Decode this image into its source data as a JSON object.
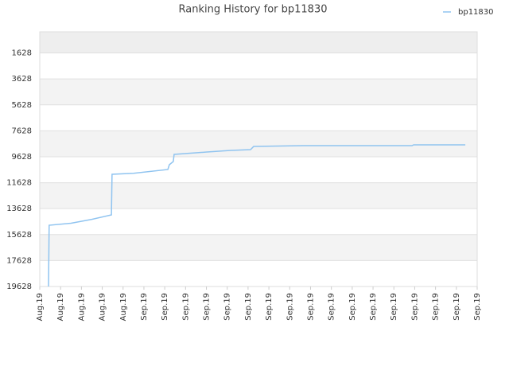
{
  "chart_data": {
    "type": "line",
    "title": "Ranking History for bp11830",
    "ylim": [
      19628,
      0
    ],
    "yticks": [
      1628,
      3628,
      5628,
      7628,
      9628,
      11628,
      13628,
      15628,
      17628,
      19628
    ],
    "xlim": [
      0,
      21
    ],
    "xticks": [
      {
        "value": 0,
        "label": "Aug.19"
      },
      {
        "value": 1,
        "label": "Aug.19"
      },
      {
        "value": 2,
        "label": "Aug.19"
      },
      {
        "value": 3,
        "label": "Aug.19"
      },
      {
        "value": 4,
        "label": "Aug.19"
      },
      {
        "value": 5,
        "label": "Sep.19"
      },
      {
        "value": 6,
        "label": "Sep.19"
      },
      {
        "value": 7,
        "label": "Sep.19"
      },
      {
        "value": 8,
        "label": "Sep.19"
      },
      {
        "value": 9,
        "label": "Sep.19"
      },
      {
        "value": 10,
        "label": "Sep.19"
      },
      {
        "value": 11,
        "label": "Sep.19"
      },
      {
        "value": 12,
        "label": "Sep.19"
      },
      {
        "value": 13,
        "label": "Sep.19"
      },
      {
        "value": 14,
        "label": "Sep.19"
      },
      {
        "value": 15,
        "label": "Sep.19"
      },
      {
        "value": 16,
        "label": "Sep.19"
      },
      {
        "value": 17,
        "label": "Sep.19"
      },
      {
        "value": 18,
        "label": "Sep.19"
      },
      {
        "value": 19,
        "label": "Sep.19"
      },
      {
        "value": 20,
        "label": "Sep.19"
      },
      {
        "value": 21,
        "label": "Sep.19"
      }
    ],
    "grid": true,
    "legend": "top-right",
    "series": [
      {
        "name": "bp11830",
        "color": "#90c4f0",
        "x": [
          0.42,
          0.45,
          1.5,
          2.5,
          3.44,
          3.47,
          4.5,
          6.15,
          6.22,
          6.41,
          6.45,
          8.02,
          9.16,
          10.12,
          10.27,
          12.75,
          17.87,
          17.95,
          20.43
        ],
        "values": [
          19628,
          14905,
          14750,
          14450,
          14108,
          10980,
          10900,
          10611,
          10243,
          9998,
          9446,
          9262,
          9140,
          9078,
          8833,
          8771,
          8771,
          8710,
          8710
        ]
      }
    ]
  }
}
